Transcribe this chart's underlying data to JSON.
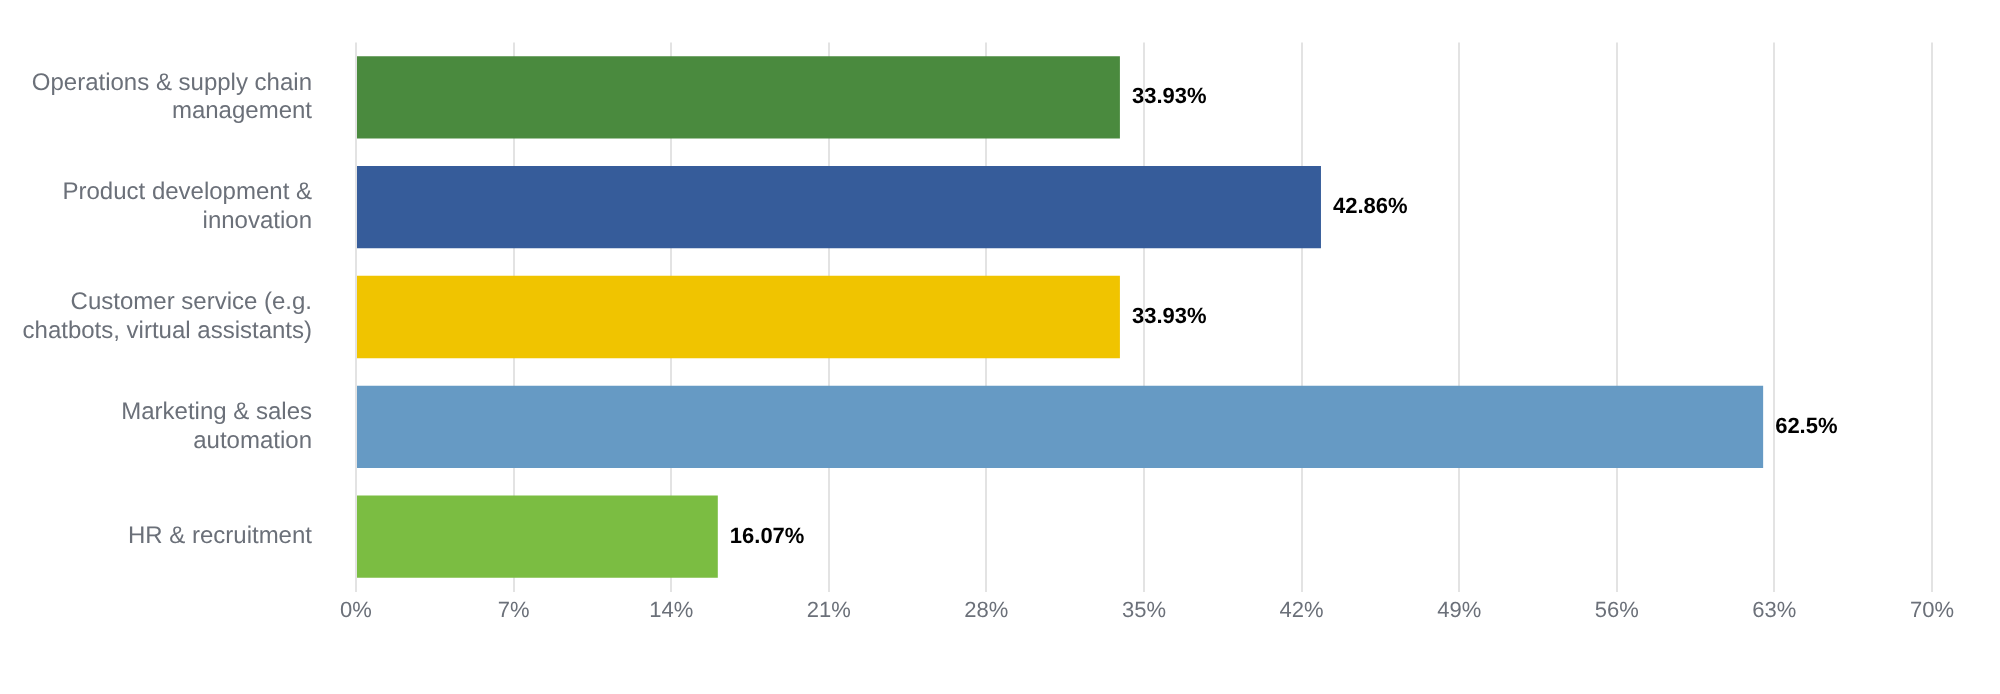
{
  "chart_data": {
    "type": "bar",
    "orientation": "horizontal",
    "categories": [
      "Operations & supply chain management",
      "Product development & innovation",
      "Customer service (e.g. chatbots, virtual assistants)",
      "Marketing & sales automation",
      "HR & recruitment"
    ],
    "values": [
      33.93,
      42.86,
      33.93,
      62.5,
      16.07
    ],
    "colors": [
      "#4a8a3e",
      "#365c9a",
      "#f0c400",
      "#669ac4",
      "#7bbd42"
    ],
    "value_labels": [
      "33.93%",
      "42.86%",
      "33.93%",
      "62.5%",
      "16.07%"
    ],
    "xlim": [
      0,
      70
    ],
    "xticks": [
      {
        "value": 0,
        "label": "0%"
      },
      {
        "value": 7,
        "label": "7%"
      },
      {
        "value": 14,
        "label": "14%"
      },
      {
        "value": 21,
        "label": "21%"
      },
      {
        "value": 28,
        "label": "28%"
      },
      {
        "value": 35,
        "label": "35%"
      },
      {
        "value": 42,
        "label": "42%"
      },
      {
        "value": 49,
        "label": "49%"
      },
      {
        "value": 56,
        "label": "56%"
      },
      {
        "value": 63,
        "label": "63%"
      },
      {
        "value": 70,
        "label": "70%"
      }
    ],
    "grid": "x",
    "legend": false
  }
}
